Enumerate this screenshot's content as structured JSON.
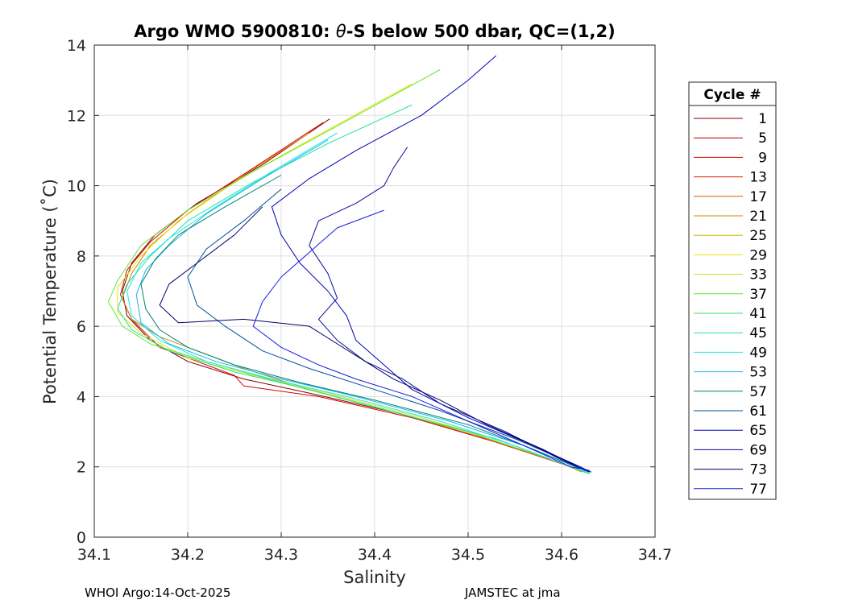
{
  "chart_data": {
    "type": "line",
    "title_prefix": "Argo WMO 5900810: ",
    "title_theta": "θ",
    "title_suffix": "-S below 500 dbar,  QC=(1,2)",
    "xlabel": "Salinity",
    "ylabel": "Potential Temperature (˚C)",
    "xlim": [
      34.1,
      34.7
    ],
    "ylim": [
      0,
      14
    ],
    "xticks": [
      "34.1",
      "34.2",
      "34.3",
      "34.4",
      "34.5",
      "34.6",
      "34.7"
    ],
    "yticks": [
      "0",
      "2",
      "4",
      "6",
      "8",
      "10",
      "12",
      "14"
    ],
    "grid": true,
    "legend": {
      "title": "Cycle #",
      "placement": "outside-right",
      "entries": [
        "1",
        "5",
        "9",
        "13",
        "17",
        "21",
        "25",
        "29",
        "33",
        "37",
        "41",
        "45",
        "49",
        "53",
        "57",
        "61",
        "65",
        "69",
        "73",
        "77"
      ],
      "colors": [
        "#800000",
        "#b30000",
        "#d90000",
        "#e61a00",
        "#e65c00",
        "#cc8800",
        "#c8b400",
        "#e6e600",
        "#b4e61a",
        "#66e633",
        "#33e666",
        "#1ae6a0",
        "#1ae6e6",
        "#1ab4e6",
        "#00806e",
        "#004d99",
        "#0000b3",
        "#0a0a99",
        "#000066",
        "#1a1ae6"
      ]
    },
    "representative_series": [
      {
        "cycle": "1",
        "color": "#800000",
        "points": [
          [
            34.352,
            11.9
          ],
          [
            34.28,
            10.6
          ],
          [
            34.21,
            9.5
          ],
          [
            34.165,
            8.6
          ],
          [
            34.14,
            7.8
          ],
          [
            34.13,
            7.0
          ],
          [
            34.135,
            6.3
          ],
          [
            34.16,
            5.6
          ],
          [
            34.2,
            5.0
          ],
          [
            34.26,
            4.5
          ],
          [
            34.33,
            4.1
          ],
          [
            34.43,
            3.5
          ],
          [
            34.52,
            2.8
          ],
          [
            34.6,
            2.1
          ],
          [
            34.625,
            1.85
          ]
        ]
      },
      {
        "cycle": "9",
        "color": "#d90000",
        "points": [
          [
            34.345,
            11.8
          ],
          [
            34.27,
            10.5
          ],
          [
            34.2,
            9.3
          ],
          [
            34.16,
            8.4
          ],
          [
            34.135,
            7.6
          ],
          [
            34.128,
            6.9
          ],
          [
            34.14,
            6.2
          ],
          [
            34.17,
            5.4
          ],
          [
            34.22,
            4.9
          ],
          [
            34.25,
            4.6
          ],
          [
            34.26,
            4.3
          ],
          [
            34.34,
            4.0
          ],
          [
            34.44,
            3.4
          ],
          [
            34.53,
            2.7
          ],
          [
            34.61,
            2.0
          ],
          [
            34.625,
            1.85
          ]
        ]
      },
      {
        "cycle": "21",
        "color": "#cc8800",
        "points": [
          [
            34.33,
            11.5
          ],
          [
            34.26,
            10.3
          ],
          [
            34.2,
            9.2
          ],
          [
            34.16,
            8.3
          ],
          [
            34.14,
            7.5
          ],
          [
            34.13,
            6.8
          ],
          [
            34.14,
            6.2
          ],
          [
            34.17,
            5.7
          ],
          [
            34.21,
            5.3
          ],
          [
            34.26,
            4.8
          ],
          [
            34.33,
            4.2
          ],
          [
            34.43,
            3.5
          ],
          [
            34.52,
            2.8
          ],
          [
            34.6,
            2.1
          ],
          [
            34.622,
            1.85
          ]
        ]
      },
      {
        "cycle": "29",
        "color": "#e6e600",
        "points": [
          [
            34.44,
            12.9
          ],
          [
            34.33,
            11.3
          ],
          [
            34.25,
            10.1
          ],
          [
            34.19,
            9.0
          ],
          [
            34.15,
            8.0
          ],
          [
            34.125,
            7.1
          ],
          [
            34.125,
            6.4
          ],
          [
            34.15,
            5.8
          ],
          [
            34.2,
            5.1
          ],
          [
            34.27,
            4.6
          ],
          [
            34.35,
            4.1
          ],
          [
            34.45,
            3.4
          ],
          [
            34.54,
            2.7
          ],
          [
            34.61,
            2.0
          ],
          [
            34.63,
            1.8
          ]
        ]
      },
      {
        "cycle": "37",
        "color": "#66e633",
        "points": [
          [
            34.47,
            13.3
          ],
          [
            34.36,
            11.7
          ],
          [
            34.27,
            10.4
          ],
          [
            34.2,
            9.3
          ],
          [
            34.15,
            8.3
          ],
          [
            34.125,
            7.3
          ],
          [
            34.115,
            6.7
          ],
          [
            34.13,
            6.0
          ],
          [
            34.16,
            5.5
          ],
          [
            34.22,
            5.0
          ],
          [
            34.3,
            4.4
          ],
          [
            34.4,
            3.7
          ],
          [
            34.5,
            3.0
          ],
          [
            34.59,
            2.2
          ],
          [
            34.63,
            1.8
          ]
        ]
      },
      {
        "cycle": "45",
        "color": "#1ae6a0",
        "points": [
          [
            34.44,
            12.3
          ],
          [
            34.35,
            11.2
          ],
          [
            34.27,
            10.1
          ],
          [
            34.2,
            9.0
          ],
          [
            34.16,
            8.0
          ],
          [
            34.135,
            7.2
          ],
          [
            34.125,
            6.5
          ],
          [
            34.14,
            5.9
          ],
          [
            34.18,
            5.3
          ],
          [
            34.25,
            4.7
          ],
          [
            34.33,
            4.2
          ],
          [
            34.43,
            3.5
          ],
          [
            34.53,
            2.8
          ],
          [
            34.61,
            2.0
          ],
          [
            34.63,
            1.8
          ]
        ]
      },
      {
        "cycle": "49",
        "color": "#1ae6e6",
        "points": [
          [
            34.36,
            11.5
          ],
          [
            34.29,
            10.4
          ],
          [
            34.23,
            9.4
          ],
          [
            34.18,
            8.5
          ],
          [
            34.15,
            7.8
          ],
          [
            34.135,
            7.0
          ],
          [
            34.14,
            6.3
          ],
          [
            34.17,
            5.6
          ],
          [
            34.22,
            5.0
          ],
          [
            34.29,
            4.5
          ],
          [
            34.37,
            4.0
          ],
          [
            34.47,
            3.3
          ],
          [
            34.55,
            2.6
          ],
          [
            34.61,
            2.0
          ],
          [
            34.628,
            1.85
          ]
        ]
      },
      {
        "cycle": "53",
        "color": "#1ab4e6",
        "points": [
          [
            34.35,
            11.3
          ],
          [
            34.28,
            10.2
          ],
          [
            34.22,
            9.2
          ],
          [
            34.18,
            8.3
          ],
          [
            34.155,
            7.6
          ],
          [
            34.145,
            6.9
          ],
          [
            34.15,
            6.1
          ],
          [
            34.18,
            5.5
          ],
          [
            34.23,
            5.0
          ],
          [
            34.3,
            4.5
          ],
          [
            34.38,
            4.0
          ],
          [
            34.48,
            3.3
          ],
          [
            34.56,
            2.6
          ],
          [
            34.615,
            2.0
          ],
          [
            34.63,
            1.85
          ]
        ]
      },
      {
        "cycle": "57",
        "color": "#00806e",
        "points": [
          [
            34.3,
            10.3
          ],
          [
            34.24,
            9.4
          ],
          [
            34.19,
            8.6
          ],
          [
            34.165,
            7.9
          ],
          [
            34.15,
            7.2
          ],
          [
            34.155,
            6.5
          ],
          [
            34.17,
            5.9
          ],
          [
            34.2,
            5.4
          ],
          [
            34.25,
            4.9
          ],
          [
            34.32,
            4.4
          ],
          [
            34.4,
            3.9
          ],
          [
            34.5,
            3.2
          ],
          [
            34.57,
            2.5
          ],
          [
            34.62,
            1.95
          ]
        ]
      },
      {
        "cycle": "61",
        "color": "#004d99",
        "points": [
          [
            34.3,
            9.9
          ],
          [
            34.26,
            9.0
          ],
          [
            34.22,
            8.2
          ],
          [
            34.2,
            7.4
          ],
          [
            34.21,
            6.6
          ],
          [
            34.24,
            6.0
          ],
          [
            34.28,
            5.3
          ],
          [
            34.33,
            4.8
          ],
          [
            34.4,
            4.2
          ],
          [
            34.47,
            3.6
          ],
          [
            34.55,
            2.8
          ],
          [
            34.62,
            2.0
          ],
          [
            34.632,
            1.85
          ]
        ]
      },
      {
        "cycle": "65",
        "color": "#0000b3",
        "points": [
          [
            34.53,
            13.7
          ],
          [
            34.5,
            13.0
          ],
          [
            34.45,
            12.0
          ],
          [
            34.38,
            11.0
          ],
          [
            34.33,
            10.2
          ],
          [
            34.29,
            9.4
          ],
          [
            34.3,
            8.6
          ],
          [
            34.32,
            7.8
          ],
          [
            34.35,
            7.0
          ],
          [
            34.37,
            6.3
          ],
          [
            34.38,
            5.6
          ],
          [
            34.41,
            4.9
          ],
          [
            34.44,
            4.2
          ],
          [
            34.5,
            3.4
          ],
          [
            34.57,
            2.6
          ],
          [
            34.62,
            2.0
          ],
          [
            34.63,
            1.85
          ]
        ]
      },
      {
        "cycle": "69",
        "color": "#0a0a99",
        "points": [
          [
            34.435,
            11.1
          ],
          [
            34.42,
            10.5
          ],
          [
            34.41,
            10.0
          ],
          [
            34.38,
            9.5
          ],
          [
            34.34,
            9.0
          ],
          [
            34.33,
            8.3
          ],
          [
            34.35,
            7.5
          ],
          [
            34.36,
            6.8
          ],
          [
            34.34,
            6.2
          ],
          [
            34.36,
            5.6
          ],
          [
            34.39,
            5.0
          ],
          [
            34.43,
            4.5
          ],
          [
            34.47,
            3.8
          ],
          [
            34.54,
            3.0
          ],
          [
            34.6,
            2.2
          ],
          [
            34.63,
            1.85
          ]
        ]
      },
      {
        "cycle": "73",
        "color": "#000066",
        "points": [
          [
            34.28,
            9.4
          ],
          [
            34.25,
            8.6
          ],
          [
            34.21,
            7.8
          ],
          [
            34.18,
            7.2
          ],
          [
            34.17,
            6.6
          ],
          [
            34.19,
            6.1
          ],
          [
            34.26,
            6.2
          ],
          [
            34.33,
            6.0
          ],
          [
            34.36,
            5.5
          ],
          [
            34.39,
            5.0
          ],
          [
            34.42,
            4.5
          ],
          [
            34.47,
            3.9
          ],
          [
            34.52,
            3.2
          ],
          [
            34.58,
            2.5
          ],
          [
            34.625,
            1.9
          ]
        ]
      },
      {
        "cycle": "77",
        "color": "#1a1ae6",
        "points": [
          [
            34.41,
            9.3
          ],
          [
            34.36,
            8.8
          ],
          [
            34.33,
            8.1
          ],
          [
            34.3,
            7.4
          ],
          [
            34.28,
            6.7
          ],
          [
            34.27,
            6.0
          ],
          [
            34.3,
            5.4
          ],
          [
            34.34,
            4.9
          ],
          [
            34.38,
            4.5
          ],
          [
            34.44,
            4.0
          ],
          [
            34.5,
            3.3
          ],
          [
            34.56,
            2.6
          ],
          [
            34.61,
            2.0
          ],
          [
            34.63,
            1.9
          ]
        ]
      }
    ]
  },
  "footer": {
    "left": "WHOI Argo:14-Oct-2025",
    "right": "JAMSTEC at jma"
  }
}
